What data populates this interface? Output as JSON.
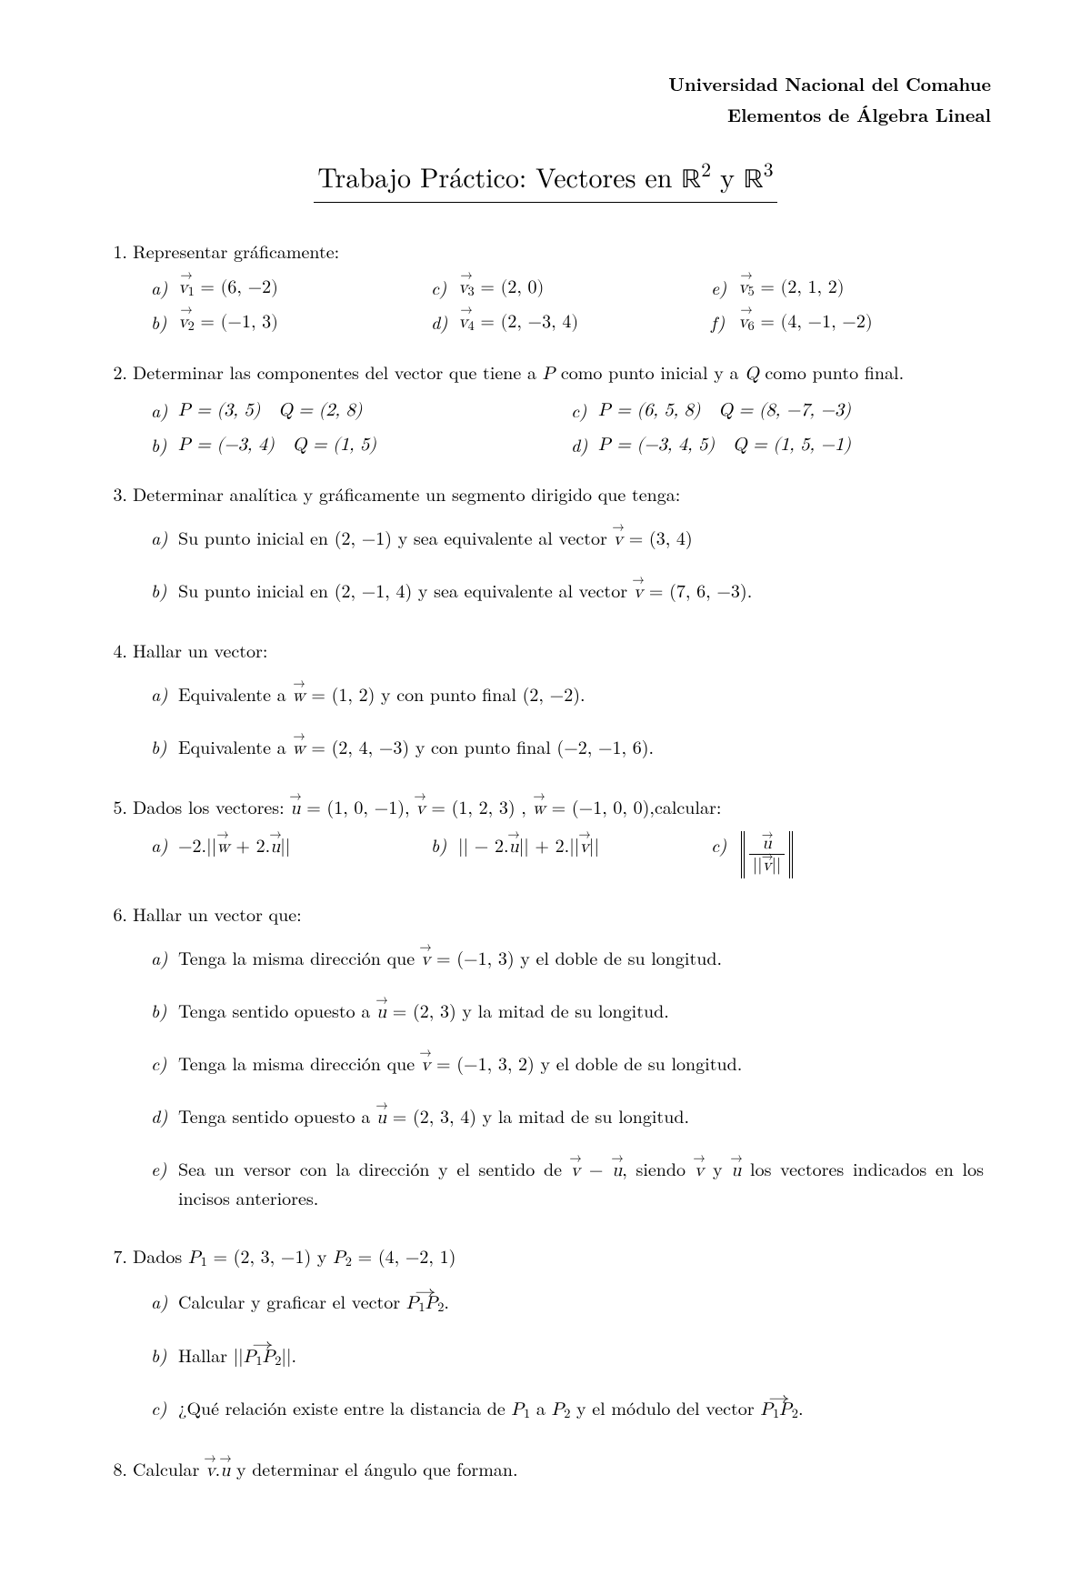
{
  "header": {
    "line1": "Universidad Nacional del Comahue",
    "line2": "Elementos de Álgebra Lineal"
  },
  "title_prefix": "Trabajo Práctico: Vectores en ",
  "problems": {
    "p1": {
      "num": "1.",
      "text": "Representar gráficamente:",
      "a_lbl": "a)",
      "a": {
        "v": "v",
        "s": "1",
        "val": " = (6, −2)"
      },
      "b_lbl": "b)",
      "b": {
        "v": "v",
        "s": "2",
        "val": " = (−1, 3)"
      },
      "c_lbl": "c)",
      "c": {
        "v": "v",
        "s": "3",
        "val": " = (2, 0)"
      },
      "d_lbl": "d)",
      "d": {
        "v": "v",
        "s": "4",
        "val": " = (2, −3, 4)"
      },
      "e_lbl": "e)",
      "e": {
        "v": "v",
        "s": "5",
        "val": " = (2, 1, 2)"
      },
      "f_lbl": "f)",
      "f": {
        "v": "v",
        "s": "6",
        "val": " = (4, −1, −2)"
      }
    },
    "p2": {
      "num": "2.",
      "text_pre": "Determinar las componentes del vector que tiene a ",
      "text_mid": " como punto inicial y a ",
      "text_post": " como punto final.",
      "a_lbl": "a)",
      "a": "P = (3, 5) Q = (2, 8)",
      "b_lbl": "b)",
      "b": "P = (−3, 4) Q = (1, 5)",
      "c_lbl": "c)",
      "c": "P = (6, 5, 8) Q = (8, −7, −3)",
      "d_lbl": "d)",
      "d": "P = (−3, 4, 5) Q = (1, 5, −1)"
    },
    "p3": {
      "num": "3.",
      "text": "Determinar analítica y gráficamente un segmento dirigido que tenga:",
      "a_lbl": "a)",
      "a_pre": "Su punto inicial en (2, −1) y sea equivalente al vector ",
      "a_post": " = (3, 4)",
      "b_lbl": "b)",
      "b_pre": "Su punto inicial en (2, −1, 4) y sea equivalente al vector ",
      "b_post": " = (7, 6, −3)."
    },
    "p4": {
      "num": "4.",
      "text": "Hallar un vector:",
      "a_lbl": "a)",
      "a_pre": "Equivalente a ",
      "a_post": " = (1, 2) y con punto final (2, −2).",
      "b_lbl": "b)",
      "b_pre": "Equivalente a ",
      "b_post": " = (2, 4, −3) y con punto final (−2, −1, 6)."
    },
    "p5": {
      "num": "5.",
      "text_pre": "Dados los vectores: ",
      "u": " = (1, 0, −1), ",
      "v": " = (1, 2, 3) , ",
      "w": " = (−1, 0, 0),calcular:",
      "a_lbl": "a)",
      "a_pre": "−2.||",
      "a_mid": " + 2.",
      "a_post": "||",
      "b_lbl": "b)",
      "b_pre": "|| − 2.",
      "b_mid": "|| + 2.||",
      "b_post": "||",
      "c_lbl": "c)"
    },
    "p6": {
      "num": "6.",
      "text": "Hallar un vector que:",
      "a_lbl": "a)",
      "a_pre": "Tenga la misma dirección que ",
      "a_post": " = (−1, 3) y el doble de su longitud.",
      "b_lbl": "b)",
      "b_pre": "Tenga sentido opuesto a ",
      "b_post": " = (2, 3) y la mitad de su longitud.",
      "c_lbl": "c)",
      "c_pre": "Tenga la misma dirección que ",
      "c_post": " = (−1, 3, 2) y el doble de su longitud.",
      "d_lbl": "d)",
      "d_pre": "Tenga sentido opuesto a ",
      "d_post": " = (2, 3, 4) y la mitad de su longitud.",
      "e_lbl": "e)",
      "e_pre": "Sea un versor con la dirección y el sentido de ",
      "e_mid": " − ",
      "e_mid2": ", siendo ",
      "e_and": " y ",
      "e_post": " los vectores indicados en los incisos anteriores."
    },
    "p7": {
      "num": "7.",
      "text_pre": "Dados ",
      "p1": " = (2, 3, −1) y ",
      "p2": " = (4, −2, 1)",
      "a_lbl": "a)",
      "a_pre": "Calcular y graficar el vector ",
      "a_post": ".",
      "b_lbl": "b)",
      "b_pre": "Hallar ||",
      "b_post": "||.",
      "c_lbl": "c)",
      "c_pre": "¿Qué relación existe entre la distancia de ",
      "c_mid": " a ",
      "c_mid2": " y el módulo del vector ",
      "c_post": "."
    },
    "p8": {
      "num": "8.",
      "text_pre": "Calcular ",
      "text_dot": ".",
      "text_post": " y determinar el ángulo que forman."
    }
  }
}
